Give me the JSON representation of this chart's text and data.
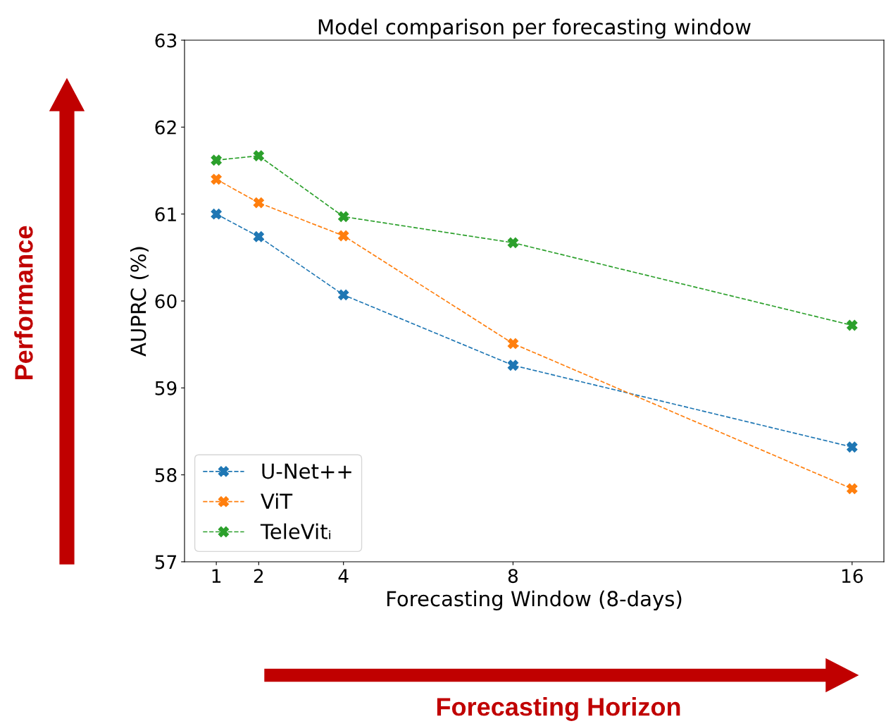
{
  "chart_data": {
    "type": "line",
    "title": "Model comparison per forecasting window",
    "xlabel": "Forecasting Window (8-days)",
    "ylabel": "AUPRC (%)",
    "x": [
      1,
      2,
      4,
      8,
      16
    ],
    "series": [
      {
        "name": "U-Net++",
        "color": "#1f77b4",
        "values": [
          61.0,
          60.74,
          60.07,
          59.26,
          58.32
        ]
      },
      {
        "name": "ViT",
        "color": "#ff7f0e",
        "values": [
          61.4,
          61.13,
          60.75,
          59.51,
          57.84
        ]
      },
      {
        "name": "TeleVitᵢ",
        "color": "#2ca02c",
        "values": [
          61.62,
          61.67,
          60.97,
          60.67,
          59.72
        ]
      }
    ],
    "xlim": [
      0.25,
      16.75
    ],
    "xticks": [
      1,
      2,
      4,
      8,
      16
    ],
    "ylim": [
      57,
      63
    ],
    "yticks": [
      57,
      58,
      59,
      60,
      61,
      62,
      63
    ],
    "marker": "cross",
    "line_style": "dashed",
    "legend": "bottom left",
    "grid": false,
    "annotations": [
      "Performance",
      "Forecasting Horizon"
    ]
  }
}
